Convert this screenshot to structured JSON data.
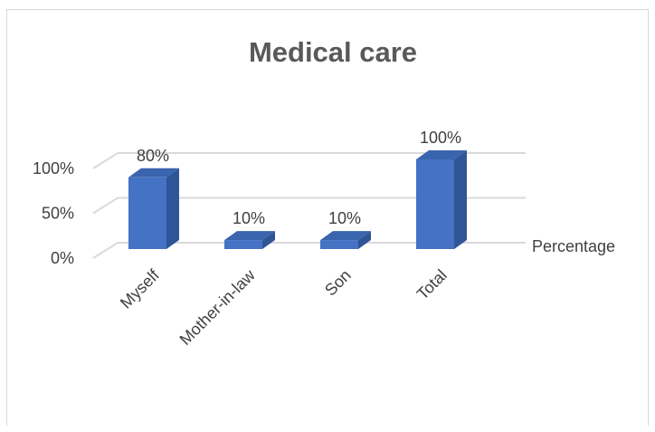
{
  "chart_data": {
    "type": "bar",
    "title": "Medical care",
    "categories": [
      "Myself",
      "Mother-in-law",
      "Son",
      "Total"
    ],
    "series": [
      {
        "name": "Percentage",
        "values": [
          80,
          10,
          10,
          100
        ]
      }
    ],
    "data_labels": [
      "80%",
      "10%",
      "10%",
      "100%"
    ],
    "y_ticks": [
      "0%",
      "50%",
      "100%"
    ],
    "ylim": [
      0,
      100
    ],
    "grid": true,
    "legend": "right",
    "style": "3d-column",
    "colors": {
      "bar_front": "#4472c4",
      "bar_side": "#2f5597",
      "bar_top": "#3a64ad",
      "grid": "#d9d9d9"
    }
  }
}
